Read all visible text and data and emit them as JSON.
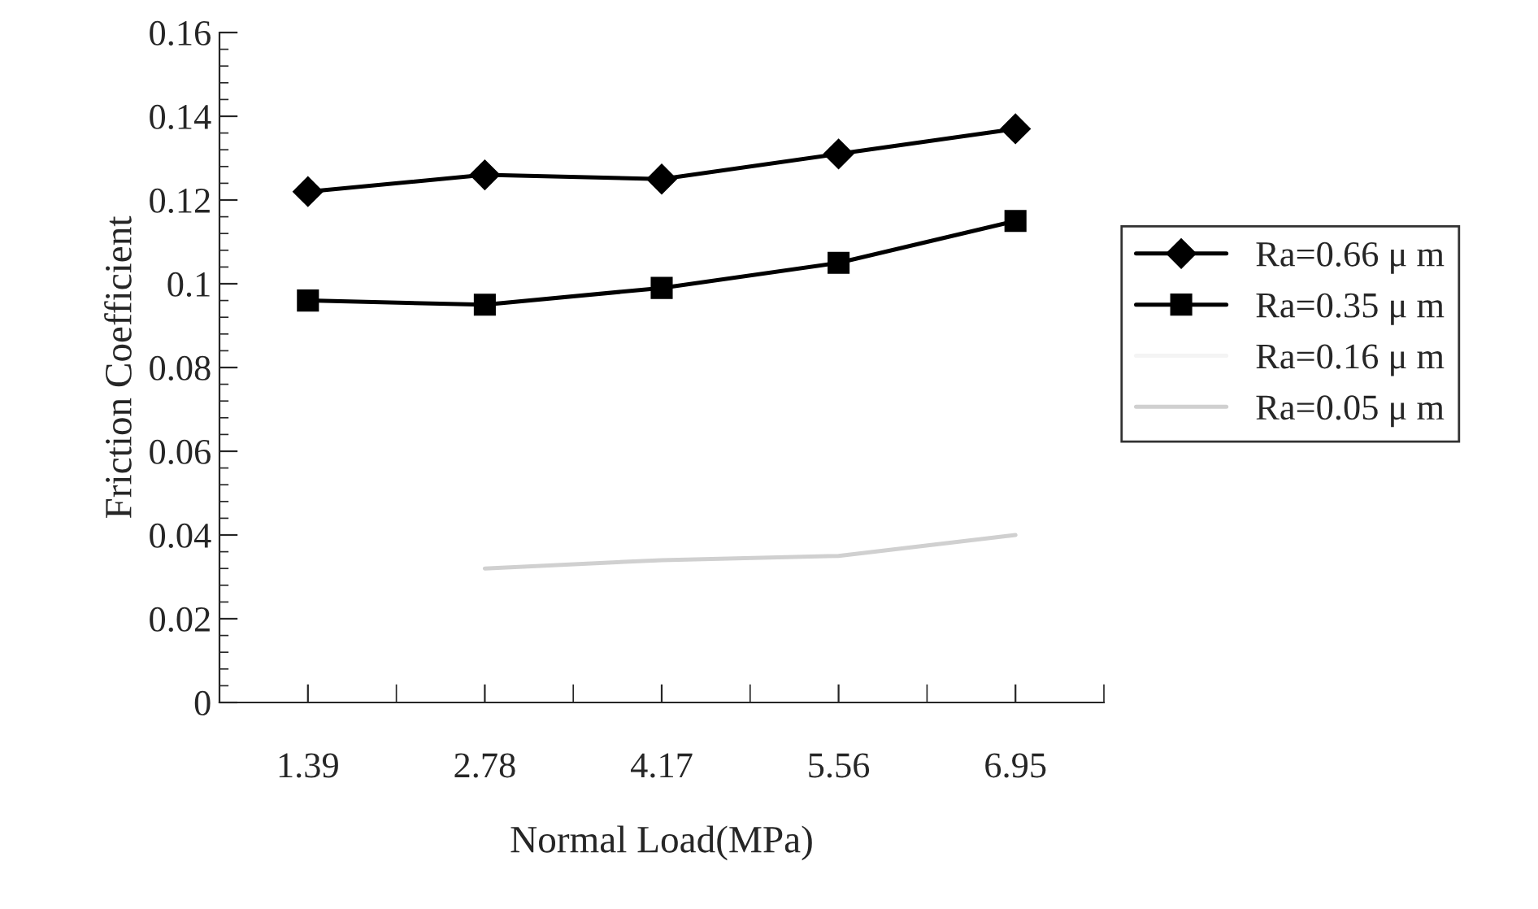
{
  "chart_data": {
    "type": "line",
    "xlabel": "Normal Load(MPa)",
    "ylabel": "Friction Coefficient",
    "categories": [
      "1.39",
      "2.78",
      "4.17",
      "5.56",
      "6.95"
    ],
    "series": [
      {
        "name": "Ra=0.66 μ m",
        "color": "#000000",
        "marker": "diamond",
        "values": [
          0.122,
          0.126,
          0.125,
          0.131,
          0.137
        ]
      },
      {
        "name": "Ra=0.35 μ m",
        "color": "#000000",
        "marker": "square",
        "values": [
          0.096,
          0.095,
          0.099,
          0.105,
          0.115
        ]
      },
      {
        "name": "Ra=0.16 μ m",
        "color": "#f4f4f4",
        "marker": "none",
        "values": [
          null,
          null,
          null,
          null,
          null
        ]
      },
      {
        "name": "Ra=0.05 μ m",
        "color": "#d0d0d0",
        "marker": "none",
        "values": [
          null,
          0.032,
          0.034,
          0.035,
          0.04
        ]
      }
    ],
    "ylim": [
      0,
      0.16
    ],
    "yticks": [
      {
        "value": 0,
        "label": "0"
      },
      0.02,
      0.04,
      0.06,
      0.08,
      {
        "value": 0.1,
        "label": "0.1"
      },
      0.12,
      0.14,
      0.16
    ],
    "grid": false,
    "legend": "right"
  }
}
